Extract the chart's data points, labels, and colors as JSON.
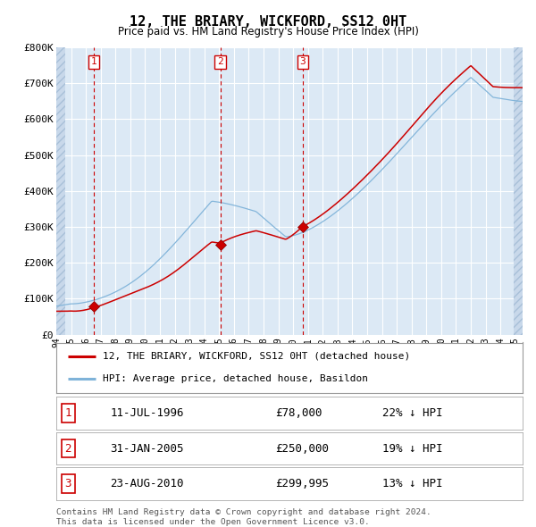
{
  "title": "12, THE BRIARY, WICKFORD, SS12 0HT",
  "subtitle": "Price paid vs. HM Land Registry's House Price Index (HPI)",
  "bg_color": "#dce9f5",
  "grid_color": "#ffffff",
  "red_line_color": "#cc0000",
  "blue_line_color": "#7fb3d9",
  "legend_label_red": "12, THE BRIARY, WICKFORD, SS12 0HT (detached house)",
  "legend_label_blue": "HPI: Average price, detached house, Basildon",
  "sale_dates": [
    1996.53,
    2005.08,
    2010.64
  ],
  "sale_prices": [
    78000,
    250000,
    299995
  ],
  "sale_labels": [
    "1",
    "2",
    "3"
  ],
  "sale_hpi_pct": [
    "22% ↓ HPI",
    "19% ↓ HPI",
    "13% ↓ HPI"
  ],
  "sale_date_labels": [
    "11-JUL-1996",
    "31-JAN-2005",
    "23-AUG-2010"
  ],
  "sale_price_labels": [
    "£78,000",
    "£250,000",
    "£299,995"
  ],
  "ylim": [
    0,
    800000
  ],
  "yticks": [
    0,
    100000,
    200000,
    300000,
    400000,
    500000,
    600000,
    700000,
    800000
  ],
  "ytick_labels": [
    "£0",
    "£100K",
    "£200K",
    "£300K",
    "£400K",
    "£500K",
    "£600K",
    "£700K",
    "£800K"
  ],
  "xlim_start": 1994.0,
  "xlim_end": 2025.5,
  "footer": "Contains HM Land Registry data © Crown copyright and database right 2024.\nThis data is licensed under the Open Government Licence v3.0."
}
